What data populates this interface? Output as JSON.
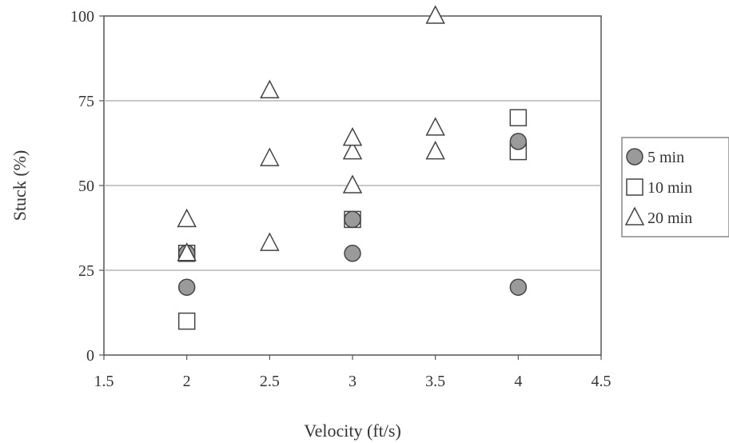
{
  "chart_data": {
    "type": "scatter",
    "xlabel": "Velocity (ft/s)",
    "ylabel": "Stuck (%)",
    "xlim": [
      1.5,
      4.5
    ],
    "ylim": [
      0,
      100
    ],
    "xticks": [
      1.5,
      2,
      2.5,
      3,
      3.5,
      4,
      4.5
    ],
    "yticks": [
      0,
      25,
      50,
      75,
      100
    ],
    "x_tick_labels": [
      "1.5",
      "2",
      "2.5",
      "3",
      "3.5",
      "4",
      "4.5"
    ],
    "y_tick_labels": [
      "0",
      "25",
      "50",
      "75",
      "100"
    ],
    "grid": "horizontal",
    "legend_position": "right",
    "series": [
      {
        "name": "5 min",
        "marker": "circle",
        "color": "#9a9a9a",
        "points": [
          [
            2,
            20
          ],
          [
            2,
            30
          ],
          [
            3,
            30
          ],
          [
            3,
            40
          ],
          [
            4,
            20
          ],
          [
            4,
            63
          ]
        ]
      },
      {
        "name": "10 min",
        "marker": "square",
        "color": "#ffffff",
        "points": [
          [
            2,
            10
          ],
          [
            2,
            30
          ],
          [
            3,
            40
          ],
          [
            4,
            60
          ],
          [
            4,
            70
          ]
        ]
      },
      {
        "name": "20 min",
        "marker": "triangle",
        "color": "#ffffff",
        "points": [
          [
            2,
            30
          ],
          [
            2,
            40
          ],
          [
            2.5,
            33
          ],
          [
            2.5,
            58
          ],
          [
            2.5,
            78
          ],
          [
            3,
            50
          ],
          [
            3,
            60
          ],
          [
            3,
            64
          ],
          [
            3.5,
            60
          ],
          [
            3.5,
            67
          ],
          [
            3.5,
            100
          ]
        ]
      }
    ]
  }
}
